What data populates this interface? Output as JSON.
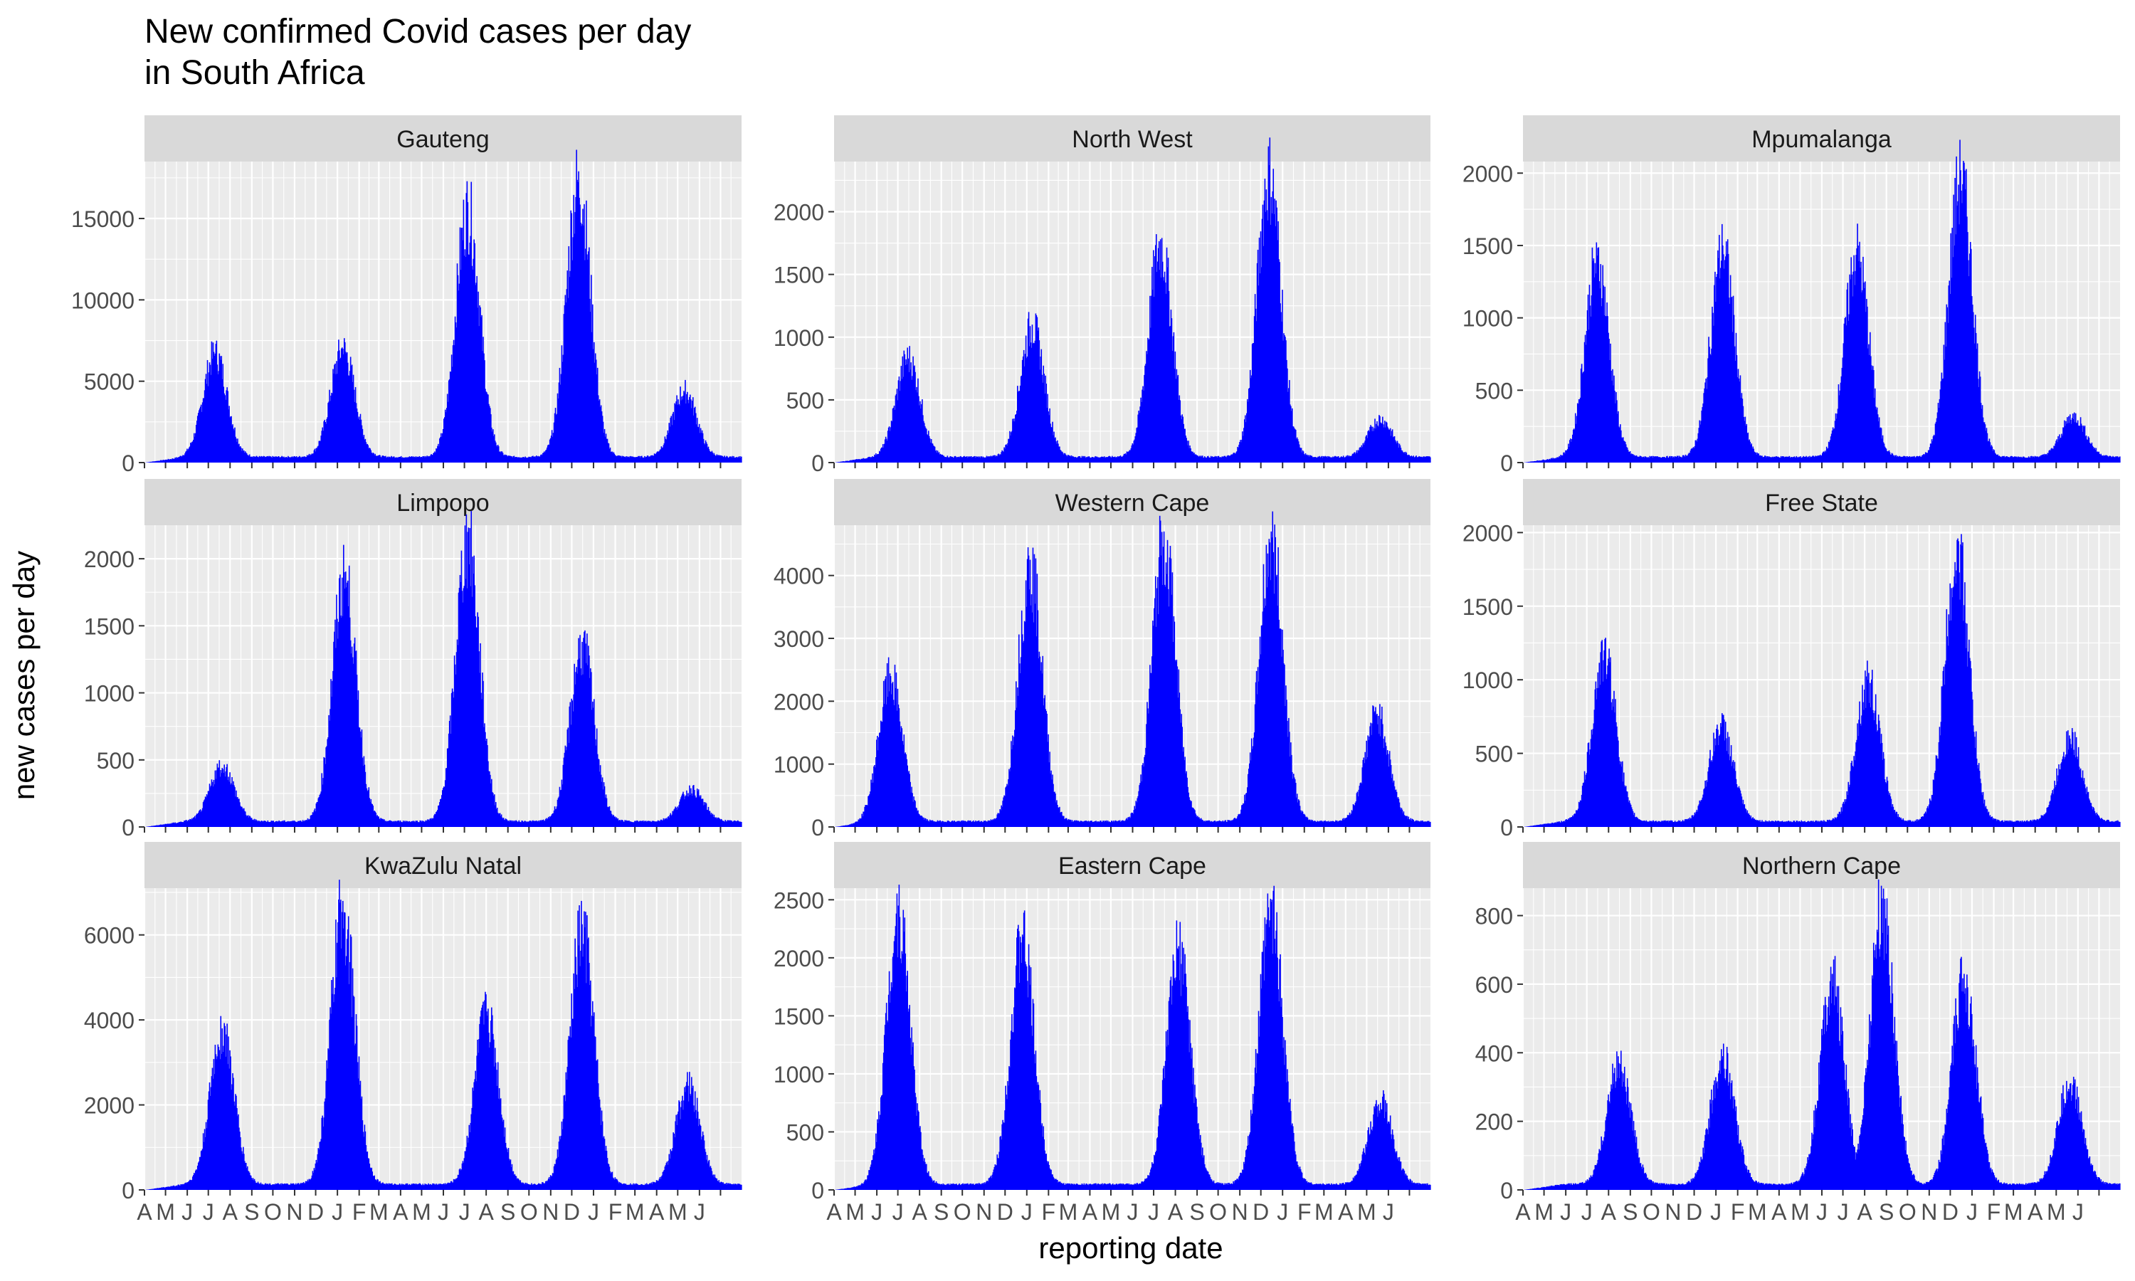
{
  "title_line1": "New confirmed Covid cases per day",
  "title_line2": "in South Africa",
  "xlabel": "reporting date",
  "ylabel": "new cases per day",
  "x_tick_labels": [
    "A",
    "M",
    "J",
    "J",
    "A",
    "S",
    "O",
    "N",
    "D",
    "J",
    "F",
    "M",
    "A",
    "M",
    "J",
    "J",
    "A",
    "S",
    "O",
    "N",
    "D",
    "J",
    "F",
    "M",
    "A",
    "M",
    "J"
  ],
  "colors": {
    "bar": "#0000ff",
    "panel_background": "#ebebeb",
    "grid": "#ffffff",
    "strip_background": "#d9d9d9",
    "text": "#000000",
    "tick_text": "#4d4d4d"
  },
  "chart_data": [
    {
      "type": "bar",
      "panel": "Gauteng",
      "x_start": "2020-04-01",
      "x_end": "2022-07-31",
      "ylim": [
        0,
        18500
      ],
      "y_ticks": [
        0,
        5000,
        10000,
        15000
      ],
      "y_tick_labels": [
        "0",
        "5000",
        "10000",
        "15000"
      ],
      "peaks": [
        {
          "date": "2020-07-10",
          "value": 6700
        },
        {
          "date": "2021-01-08",
          "value": 7000
        },
        {
          "date": "2021-07-05",
          "value": 16000
        },
        {
          "date": "2021-12-10",
          "value": 17900
        },
        {
          "date": "2022-05-10",
          "value": 4300
        }
      ]
    },
    {
      "type": "bar",
      "panel": "North West",
      "x_start": "2020-04-01",
      "x_end": "2022-07-31",
      "ylim": [
        0,
        2400
      ],
      "y_ticks": [
        0,
        500,
        1000,
        1500,
        2000
      ],
      "y_tick_labels": [
        "0",
        "500",
        "1000",
        "1500",
        "2000"
      ],
      "peaks": [
        {
          "date": "2020-07-15",
          "value": 830
        },
        {
          "date": "2021-01-08",
          "value": 1100
        },
        {
          "date": "2021-07-10",
          "value": 1780
        },
        {
          "date": "2021-12-12",
          "value": 2370
        },
        {
          "date": "2022-05-20",
          "value": 320
        }
      ]
    },
    {
      "type": "bar",
      "panel": "Mpumalanga",
      "x_start": "2020-04-01",
      "x_end": "2022-07-31",
      "ylim": [
        0,
        2080
      ],
      "y_ticks": [
        0,
        500,
        1000,
        1500,
        2000
      ],
      "y_tick_labels": [
        "0",
        "500",
        "1000",
        "1500",
        "2000"
      ],
      "peaks": [
        {
          "date": "2020-07-15",
          "value": 1430
        },
        {
          "date": "2021-01-10",
          "value": 1500
        },
        {
          "date": "2021-07-20",
          "value": 1480
        },
        {
          "date": "2021-12-15",
          "value": 2020
        },
        {
          "date": "2022-05-25",
          "value": 300
        }
      ]
    },
    {
      "type": "bar",
      "panel": "Limpopo",
      "x_start": "2020-04-01",
      "x_end": "2022-07-31",
      "ylim": [
        0,
        2250
      ],
      "y_ticks": [
        0,
        500,
        1000,
        1500,
        2000
      ],
      "y_tick_labels": [
        "0",
        "500",
        "1000",
        "1500",
        "2000"
      ],
      "peaks": [
        {
          "date": "2020-07-20",
          "value": 440
        },
        {
          "date": "2021-01-10",
          "value": 1900
        },
        {
          "date": "2021-07-05",
          "value": 2200
        },
        {
          "date": "2021-12-15",
          "value": 1380
        },
        {
          "date": "2022-05-20",
          "value": 250
        }
      ]
    },
    {
      "type": "bar",
      "panel": "Western Cape",
      "x_start": "2020-04-01",
      "x_end": "2022-07-31",
      "ylim": [
        0,
        4800
      ],
      "y_ticks": [
        0,
        1000,
        2000,
        3000,
        4000
      ],
      "y_tick_labels": [
        "0",
        "1000",
        "2000",
        "3000",
        "4000"
      ],
      "peaks": [
        {
          "date": "2020-06-20",
          "value": 2400
        },
        {
          "date": "2021-01-05",
          "value": 4250
        },
        {
          "date": "2021-07-15",
          "value": 4700
        },
        {
          "date": "2021-12-15",
          "value": 4700
        },
        {
          "date": "2022-05-15",
          "value": 1800
        }
      ]
    },
    {
      "type": "bar",
      "panel": "Free State",
      "x_start": "2020-04-01",
      "x_end": "2022-07-31",
      "ylim": [
        0,
        2050
      ],
      "y_ticks": [
        0,
        500,
        1000,
        1500,
        2000
      ],
      "y_tick_labels": [
        "0",
        "500",
        "1000",
        "1500",
        "2000"
      ],
      "peaks": [
        {
          "date": "2020-07-25",
          "value": 1200
        },
        {
          "date": "2021-01-08",
          "value": 680
        },
        {
          "date": "2021-08-05",
          "value": 1000
        },
        {
          "date": "2021-12-10",
          "value": 1950
        },
        {
          "date": "2022-05-20",
          "value": 600
        }
      ]
    },
    {
      "type": "bar",
      "panel": "KwaZulu Natal",
      "x_start": "2020-04-01",
      "x_end": "2022-07-31",
      "ylim": [
        0,
        7100
      ],
      "y_ticks": [
        0,
        2000,
        4000,
        6000
      ],
      "y_tick_labels": [
        "0",
        "2000",
        "4000",
        "6000"
      ],
      "peaks": [
        {
          "date": "2020-07-20",
          "value": 3800
        },
        {
          "date": "2021-01-08",
          "value": 6800
        },
        {
          "date": "2021-08-01",
          "value": 4200
        },
        {
          "date": "2021-12-15",
          "value": 6250
        },
        {
          "date": "2022-05-15",
          "value": 2450
        }
      ]
    },
    {
      "type": "bar",
      "panel": "Eastern Cape",
      "x_start": "2020-04-01",
      "x_end": "2022-07-31",
      "ylim": [
        0,
        2600
      ],
      "y_ticks": [
        0,
        500,
        1000,
        1500,
        2000,
        2500
      ],
      "y_tick_labels": [
        "0",
        "500",
        "1000",
        "1500",
        "2000",
        "2500"
      ],
      "peaks": [
        {
          "date": "2020-07-01",
          "value": 2450
        },
        {
          "date": "2020-12-25",
          "value": 2200
        },
        {
          "date": "2021-08-05",
          "value": 2100
        },
        {
          "date": "2021-12-15",
          "value": 2480
        },
        {
          "date": "2022-05-20",
          "value": 750
        }
      ]
    },
    {
      "type": "bar",
      "panel": "Northern Cape",
      "x_start": "2020-04-01",
      "x_end": "2022-07-31",
      "ylim": [
        0,
        880
      ],
      "y_ticks": [
        0,
        200,
        400,
        600,
        800
      ],
      "y_tick_labels": [
        "0",
        "200",
        "400",
        "600",
        "800"
      ],
      "peaks": [
        {
          "date": "2020-08-15",
          "value": 370
        },
        {
          "date": "2021-01-10",
          "value": 390
        },
        {
          "date": "2021-06-15",
          "value": 630
        },
        {
          "date": "2021-08-25",
          "value": 850
        },
        {
          "date": "2021-12-20",
          "value": 630
        },
        {
          "date": "2022-05-20",
          "value": 310
        }
      ]
    }
  ]
}
